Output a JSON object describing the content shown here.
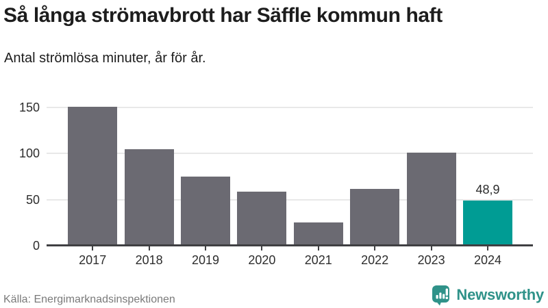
{
  "header": {
    "title": "Så långa strömavbrott har Säffle kommun haft",
    "subtitle": "Antal strömlösa minuter, år för år."
  },
  "chart_data": {
    "type": "bar",
    "title": "Så långa strömavbrott har Säffle kommun haft",
    "subtitle": "Antal strömlösa minuter, år för år.",
    "categories": [
      "2017",
      "2018",
      "2019",
      "2020",
      "2021",
      "2022",
      "2023",
      "2024"
    ],
    "values": [
      151,
      105,
      75,
      59,
      25,
      62,
      101,
      48.9
    ],
    "value_labels": [
      null,
      null,
      null,
      null,
      null,
      null,
      null,
      "48,9"
    ],
    "highlight_index": 7,
    "yticks": [
      0,
      50,
      100,
      150
    ],
    "ylim": [
      0,
      163
    ],
    "grid": true,
    "legend": false,
    "xlabel": "",
    "ylabel": "",
    "colors": {
      "bar": "#6b6a72",
      "highlight": "#009c94",
      "grid": "#e8e8e8",
      "axis": "#3f3f42",
      "tick_label": "#2d2d2d",
      "value_label": "#2b2b2b"
    }
  },
  "footer": {
    "source": "Källa: Energimarknadsinspektionen",
    "brand": "Newsworthy",
    "brand_color": "#2f9289"
  }
}
